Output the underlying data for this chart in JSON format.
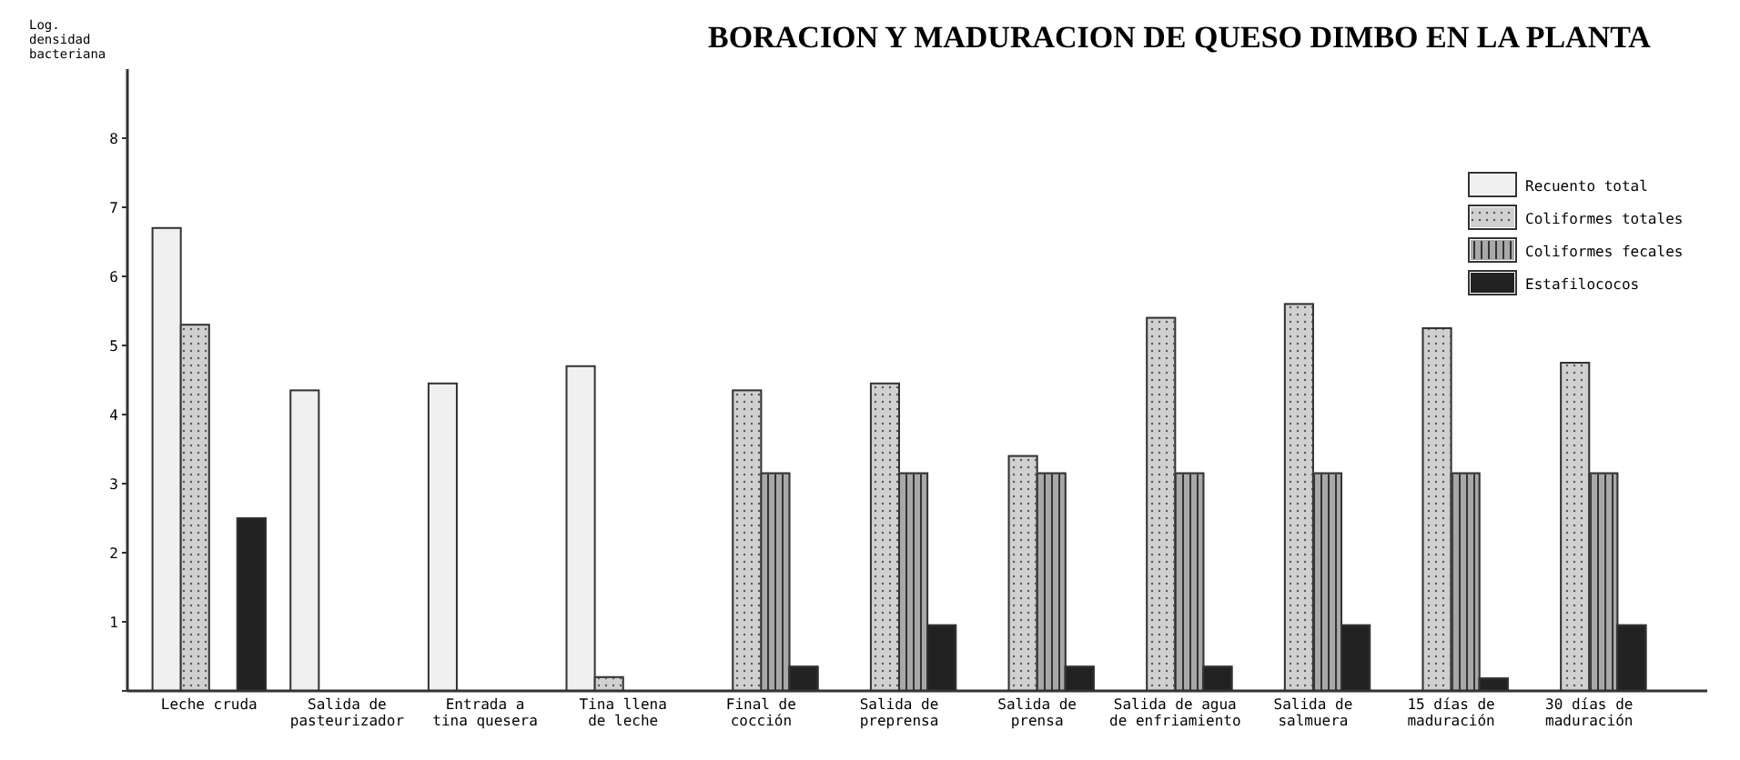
{
  "chart_data": {
    "type": "bar",
    "title": "BORACION Y MADURACION DE QUESO DIMBO EN LA PLANTA",
    "ylabel": "Log. densidad bacteriana",
    "categories": [
      "Leche cruda",
      "Salida de pasteurizador",
      "Entrada a tina quesera",
      "Tina llena de leche",
      "Final de cocción",
      "Salida de preprensa",
      "Salida de prensa",
      "Salida de agua de enfriamiento",
      "Salida de salmuera",
      "15 días de maduración",
      "30 días de maduración"
    ],
    "series": [
      {
        "name": "Recuento total",
        "color": "#f0f0f0",
        "values": [
          6.7,
          4.35,
          4.45,
          4.7,
          null,
          null,
          null,
          null,
          null,
          null,
          null
        ]
      },
      {
        "name": "Coliformes totales",
        "color": "#d0d0d0",
        "values": [
          5.3,
          null,
          null,
          0.2,
          4.35,
          4.45,
          3.4,
          5.4,
          5.6,
          5.25,
          4.75
        ]
      },
      {
        "name": "Coliformes fecales",
        "color": "#a8a8a8",
        "values": [
          null,
          null,
          null,
          null,
          3.15,
          3.15,
          3.15,
          3.15,
          3.15,
          3.15,
          3.15
        ]
      },
      {
        "name": "Estafilococos",
        "color": "#222222",
        "values": [
          2.5,
          null,
          null,
          null,
          0.35,
          0.95,
          0.35,
          0.35,
          0.95,
          0.18,
          0.95
        ]
      }
    ],
    "ylim": [
      0,
      9
    ],
    "yticks": [
      {
        "value": 0,
        "label": null
      },
      1,
      2,
      3,
      4,
      5,
      6,
      7,
      8
    ],
    "legend": "top right",
    "grid": false
  }
}
